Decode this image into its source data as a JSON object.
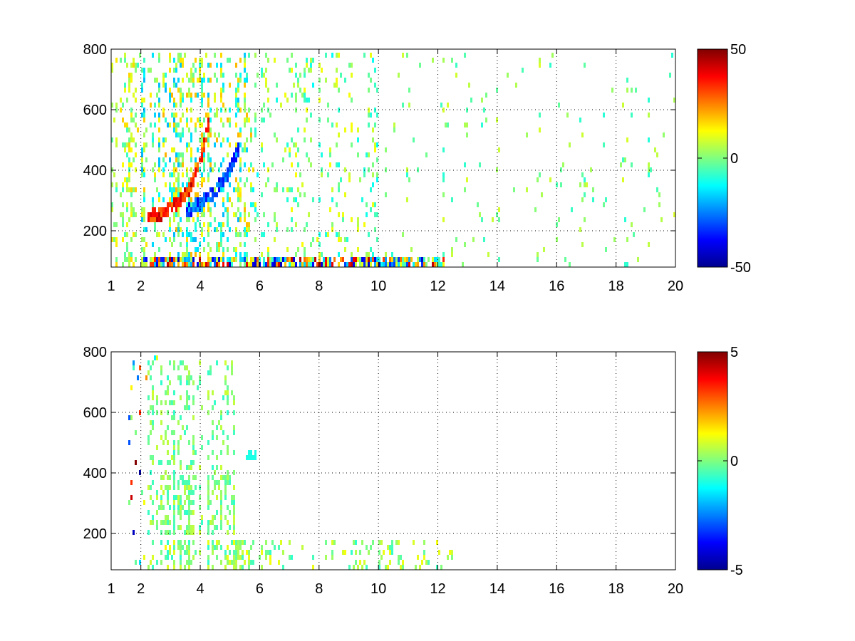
{
  "chart_data": [
    {
      "type": "heatmap",
      "title": "",
      "xlabel": "",
      "ylabel": "",
      "xlim": [
        1,
        20
      ],
      "ylim": [
        80,
        800
      ],
      "grid": true,
      "x_ticks": [
        "1",
        "2",
        "4",
        "6",
        "8",
        "10",
        "12",
        "14",
        "16",
        "18",
        "20"
      ],
      "y_ticks": [
        "200",
        "400",
        "600",
        "800"
      ],
      "colorbar": {
        "min": -50,
        "max": 50,
        "ticks": [
          "50",
          "0",
          "-50"
        ],
        "colormap": "jet",
        "position": "right"
      },
      "features": [
        {
          "name": "positive arc",
          "x": [
            2.2,
            3.0,
            3.6,
            4.0,
            4.3
          ],
          "y": [
            240,
            270,
            330,
            430,
            560
          ],
          "value": 45
        },
        {
          "name": "negative arc",
          "x": [
            3.5,
            4.0,
            4.5,
            5.0,
            5.3
          ],
          "y": [
            260,
            290,
            330,
            400,
            470
          ],
          "value": -40
        },
        {
          "name": "low-frequency band",
          "x_range": [
            2,
            12
          ],
          "y_range": [
            80,
            120
          ],
          "value_range": [
            -45,
            45
          ]
        }
      ]
    },
    {
      "type": "heatmap",
      "title": "",
      "xlabel": "",
      "ylabel": "",
      "xlim": [
        1,
        20
      ],
      "ylim": [
        80,
        800
      ],
      "grid": true,
      "x_ticks": [
        "1",
        "2",
        "4",
        "6",
        "8",
        "10",
        "12",
        "14",
        "16",
        "18",
        "20"
      ],
      "y_ticks": [
        "200",
        "400",
        "600",
        "800"
      ],
      "colorbar": {
        "min": -5,
        "max": 5,
        "ticks": [
          "5",
          "0",
          "-5"
        ],
        "colormap": "jet",
        "position": "right"
      },
      "features": [
        {
          "name": "mid-frequency cloud",
          "x_range": [
            2.2,
            5.2
          ],
          "y_range": [
            200,
            780
          ],
          "value_range": [
            -1,
            1
          ]
        },
        {
          "name": "low-frequency band",
          "x_range": [
            2,
            12.5
          ],
          "y_range": [
            80,
            180
          ],
          "value_range": [
            -1,
            2
          ]
        }
      ]
    }
  ]
}
